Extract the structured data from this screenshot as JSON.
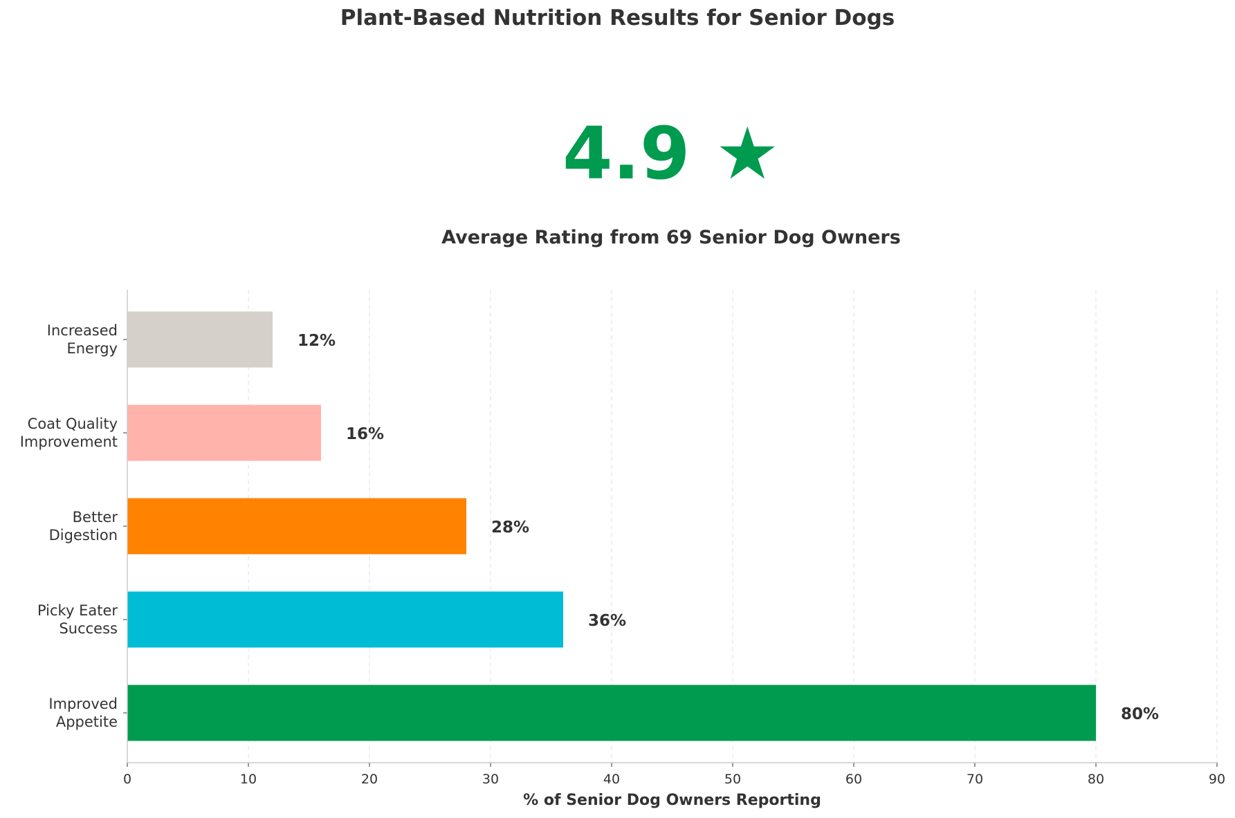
{
  "title": "Plant-Based Nutrition Results for Senior Dogs",
  "rating": {
    "value": "4.9 ★",
    "caption": "Average Rating from 69 Senior Dog Owners",
    "color": "#009B4E"
  },
  "chart_data": {
    "type": "bar",
    "orientation": "horizontal",
    "categories": [
      "Increased\nEnergy",
      "Coat Quality\nImprovement",
      "Better\nDigestion",
      "Picky Eater\nSuccess",
      "Improved\nAppetite"
    ],
    "values": [
      12,
      16,
      28,
      36,
      80
    ],
    "value_labels": [
      "12%",
      "16%",
      "28%",
      "36%",
      "80%"
    ],
    "colors": [
      "#D5D0CA",
      "#FFB3AB",
      "#FF8200",
      "#00BCD4",
      "#009B4E"
    ],
    "xlabel": "% of Senior Dog Owners Reporting",
    "ylabel": "",
    "xlim": [
      0,
      90
    ],
    "xticks": [
      "0",
      "10",
      "20",
      "30",
      "40",
      "50",
      "60",
      "70",
      "80",
      "90"
    ],
    "grid": "vertical dashed"
  }
}
